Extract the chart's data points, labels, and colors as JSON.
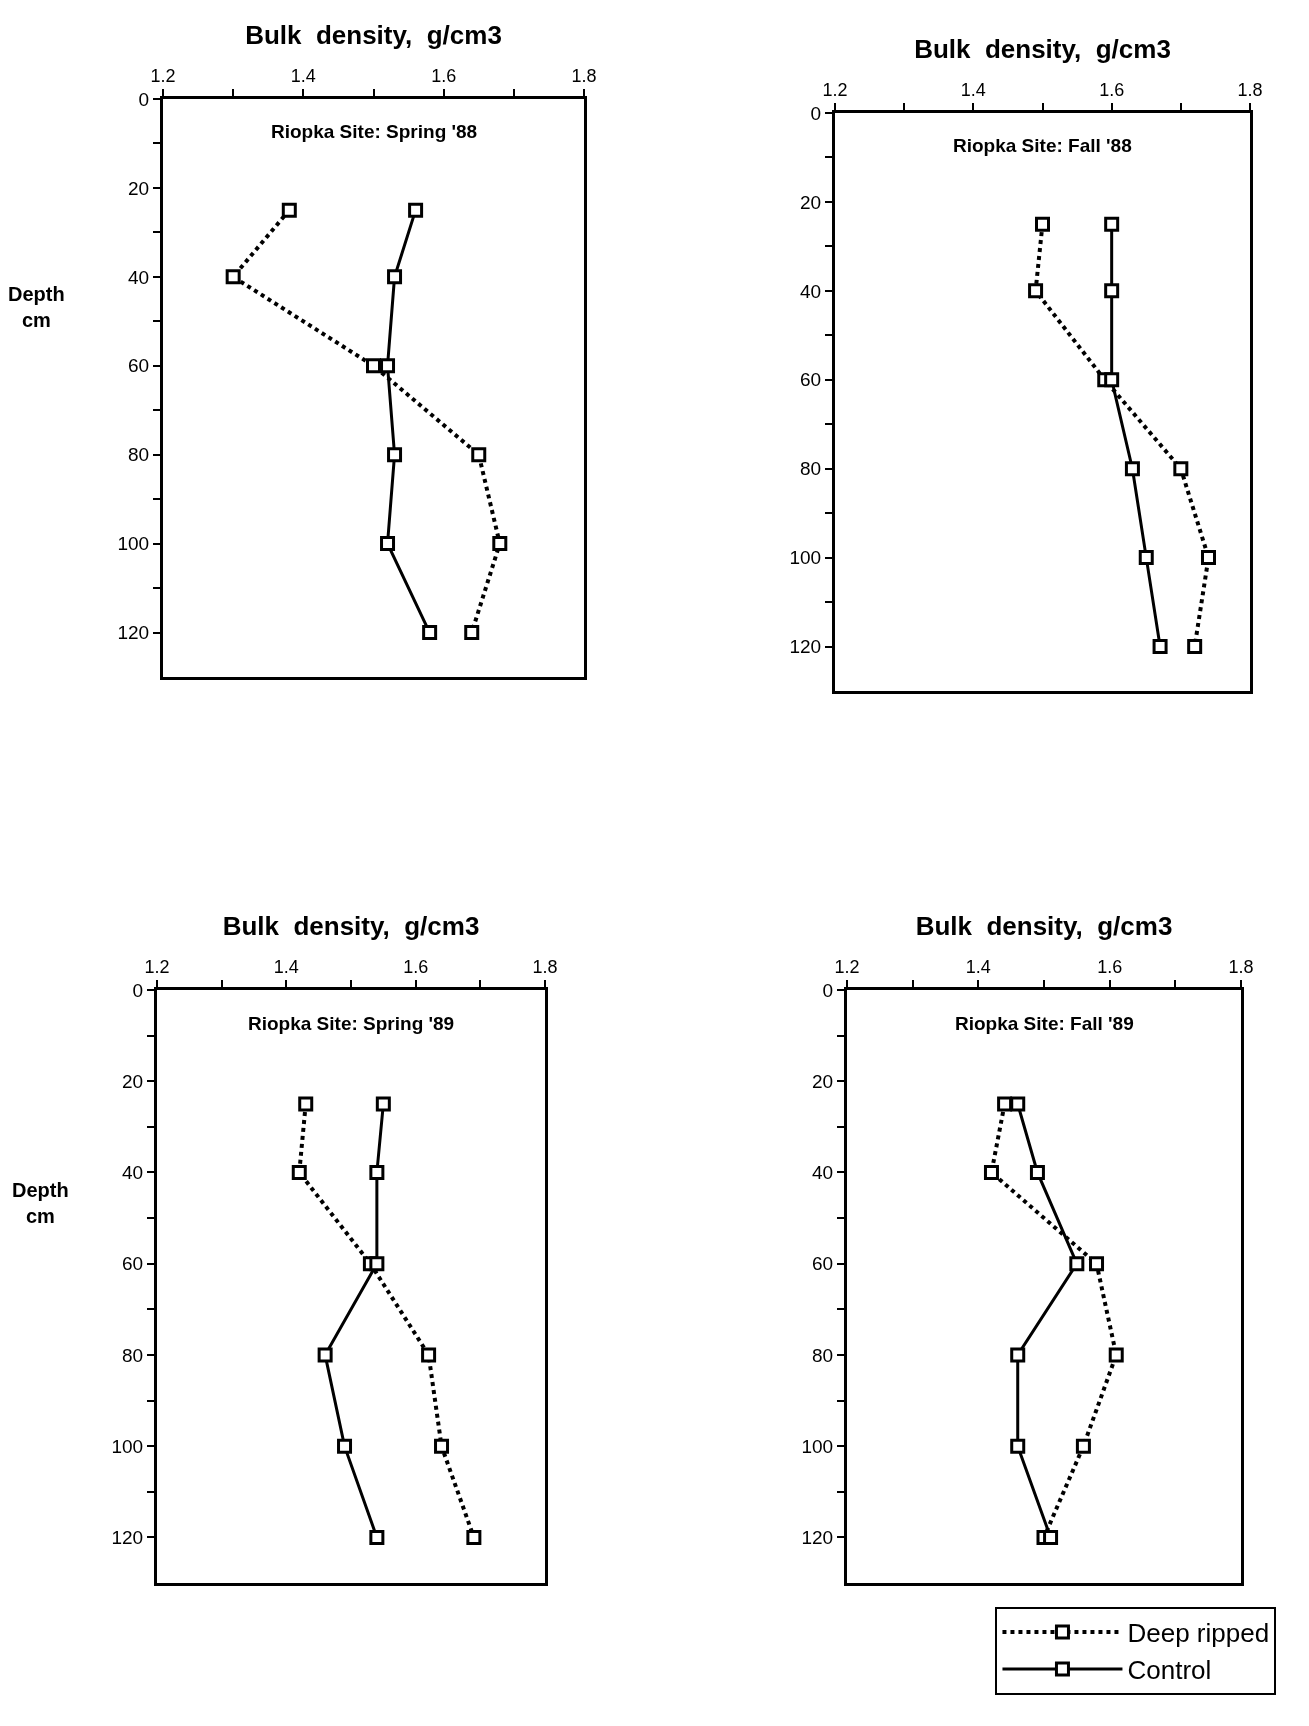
{
  "chart_data": [
    {
      "type": "line",
      "xlabel": "Bulk density, g/cm3",
      "ylabel": "Depth cm",
      "annotations": [
        "Riopka Site: Spring '88"
      ],
      "marker": "square",
      "grid": false,
      "legend": false,
      "xlim": [
        1.2,
        1.8
      ],
      "xticks": [
        1.2,
        {
          "value": 1.3,
          "label": null
        },
        1.4,
        {
          "value": 1.5,
          "label": null
        },
        1.6,
        {
          "value": 1.7,
          "label": null
        },
        1.8
      ],
      "ylim": [
        130,
        0
      ],
      "yticks": [
        0,
        {
          "value": 10,
          "label": null
        },
        20,
        {
          "value": 30,
          "label": null
        },
        40,
        {
          "value": 50,
          "label": null
        },
        60,
        {
          "value": 70,
          "label": null
        },
        80,
        {
          "value": 90,
          "label": null
        },
        100,
        {
          "value": 110,
          "label": null
        },
        120
      ],
      "series": [
        {
          "color": "#000000",
          "line_style": "dotted",
          "x": [
            1.38,
            1.3,
            1.5,
            1.65,
            1.68,
            1.64
          ],
          "values": [
            25,
            40,
            60,
            80,
            100,
            120
          ]
        },
        {
          "color": "#000000",
          "line_style": "solid",
          "x": [
            1.56,
            1.53,
            1.52,
            1.53,
            1.52,
            1.58
          ],
          "values": [
            25,
            40,
            60,
            80,
            100,
            120
          ]
        }
      ]
    },
    {
      "type": "line",
      "xlabel": "Bulk density, g/cm3",
      "annotations": [
        "Riopka Site: Fall '88"
      ],
      "marker": "square",
      "grid": false,
      "legend": false,
      "xlim": [
        1.2,
        1.8
      ],
      "xticks": [
        1.2,
        {
          "value": 1.3,
          "label": null
        },
        1.4,
        {
          "value": 1.5,
          "label": null
        },
        1.6,
        {
          "value": 1.7,
          "label": null
        },
        1.8
      ],
      "ylim": [
        130,
        0
      ],
      "yticks": [
        0,
        {
          "value": 10,
          "label": null
        },
        20,
        {
          "value": 30,
          "label": null
        },
        40,
        {
          "value": 50,
          "label": null
        },
        60,
        {
          "value": 70,
          "label": null
        },
        80,
        {
          "value": 90,
          "label": null
        },
        100,
        {
          "value": 110,
          "label": null
        },
        120
      ],
      "series": [
        {
          "color": "#000000",
          "line_style": "dotted",
          "x": [
            1.5,
            1.49,
            1.59,
            1.7,
            1.74,
            1.72
          ],
          "values": [
            25,
            40,
            60,
            80,
            100,
            120
          ]
        },
        {
          "color": "#000000",
          "line_style": "solid",
          "x": [
            1.6,
            1.6,
            1.6,
            1.63,
            1.65,
            1.67
          ],
          "values": [
            25,
            40,
            60,
            80,
            100,
            120
          ]
        }
      ]
    },
    {
      "type": "line",
      "xlabel": "Bulk density, g/cm3",
      "ylabel": "Depth cm",
      "annotations": [
        "Riopka Site: Spring '89"
      ],
      "marker": "square",
      "grid": false,
      "legend": false,
      "xlim": [
        1.2,
        1.8
      ],
      "xticks": [
        1.2,
        {
          "value": 1.3,
          "label": null
        },
        1.4,
        {
          "value": 1.5,
          "label": null
        },
        1.6,
        {
          "value": 1.7,
          "label": null
        },
        1.8
      ],
      "ylim": [
        130,
        0
      ],
      "yticks": [
        0,
        {
          "value": 10,
          "label": null
        },
        20,
        {
          "value": 30,
          "label": null
        },
        40,
        {
          "value": 50,
          "label": null
        },
        60,
        {
          "value": 70,
          "label": null
        },
        80,
        {
          "value": 90,
          "label": null
        },
        100,
        {
          "value": 110,
          "label": null
        },
        120
      ],
      "series": [
        {
          "color": "#000000",
          "line_style": "dotted",
          "x": [
            1.43,
            1.42,
            1.53,
            1.62,
            1.64,
            1.69
          ],
          "values": [
            25,
            40,
            60,
            80,
            100,
            120
          ]
        },
        {
          "color": "#000000",
          "line_style": "solid",
          "x": [
            1.55,
            1.54,
            1.54,
            1.46,
            1.49,
            1.54
          ],
          "values": [
            25,
            40,
            60,
            80,
            100,
            120
          ]
        }
      ]
    },
    {
      "type": "line",
      "xlabel": "Bulk density, g/cm3",
      "annotations": [
        "Riopka Site: Fall '89"
      ],
      "marker": "square",
      "grid": false,
      "legend": "bottom right",
      "xlim": [
        1.2,
        1.8
      ],
      "xticks": [
        1.2,
        {
          "value": 1.3,
          "label": null
        },
        1.4,
        {
          "value": 1.5,
          "label": null
        },
        1.6,
        {
          "value": 1.7,
          "label": null
        },
        1.8
      ],
      "ylim": [
        130,
        0
      ],
      "yticks": [
        0,
        {
          "value": 10,
          "label": null
        },
        20,
        {
          "value": 30,
          "label": null
        },
        40,
        {
          "value": 50,
          "label": null
        },
        60,
        {
          "value": 70,
          "label": null
        },
        80,
        {
          "value": 90,
          "label": null
        },
        100,
        {
          "value": 110,
          "label": null
        },
        120
      ],
      "series": [
        {
          "name": "Deep ripped",
          "color": "#000000",
          "line_style": "dotted",
          "x": [
            1.44,
            1.42,
            1.58,
            1.61,
            1.56,
            1.5
          ],
          "values": [
            25,
            40,
            60,
            80,
            100,
            120
          ]
        },
        {
          "name": "Control",
          "color": "#000000",
          "line_style": "solid",
          "x": [
            1.46,
            1.49,
            1.55,
            1.46,
            1.46,
            1.51
          ],
          "values": [
            25,
            40,
            60,
            80,
            100,
            120
          ]
        }
      ]
    }
  ]
}
